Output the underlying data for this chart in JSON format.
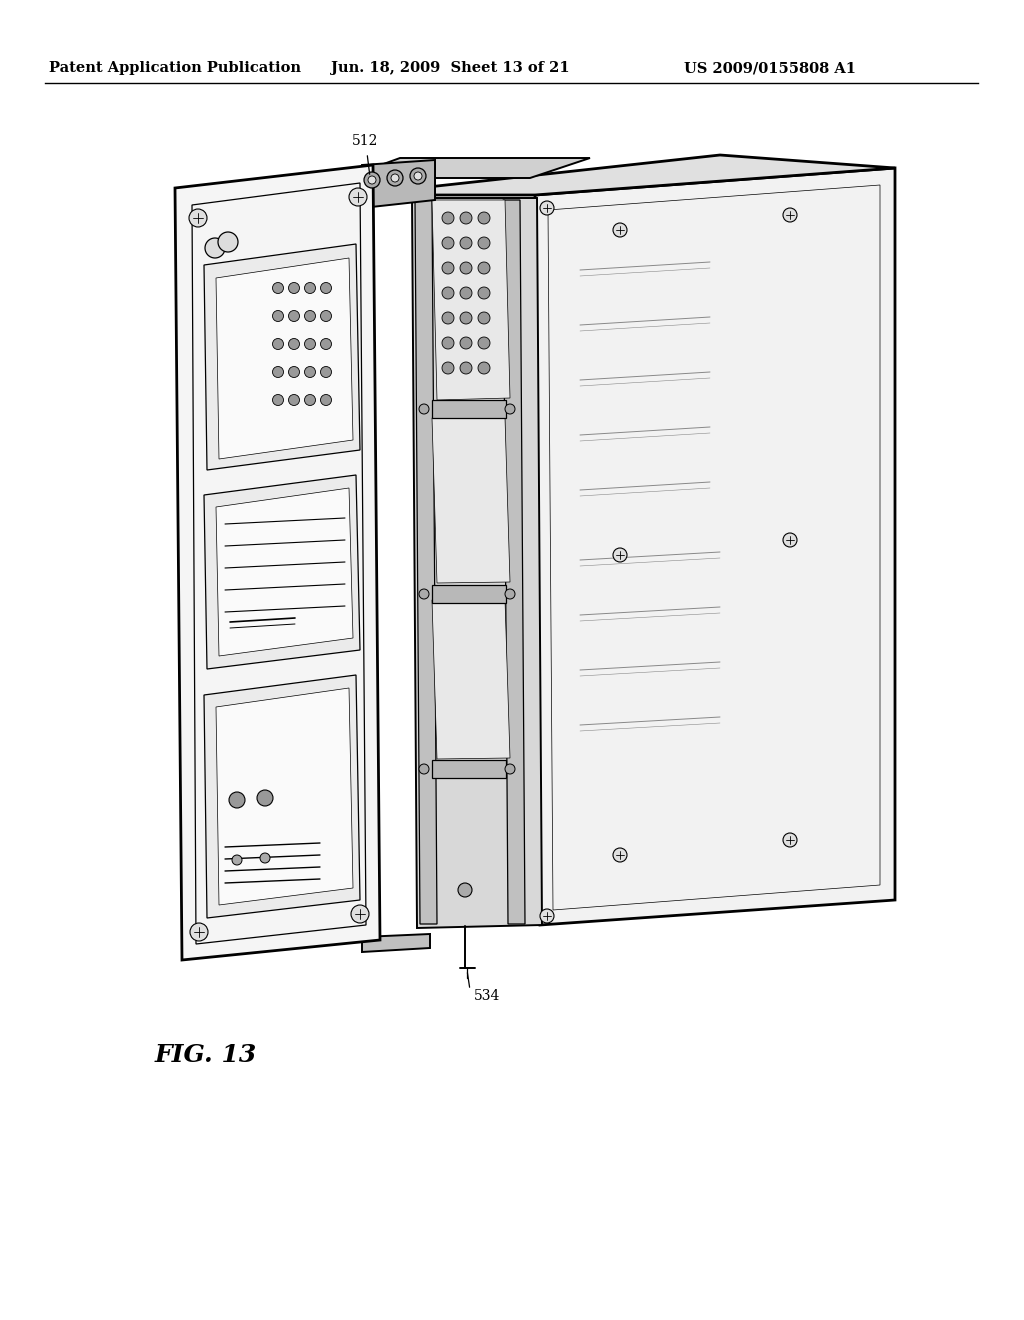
{
  "title_left": "Patent Application Publication",
  "title_mid": "Jun. 18, 2009  Sheet 13 of 21",
  "title_right": "US 2009/0155808 A1",
  "fig_label": "FIG. 13",
  "label_512": "512",
  "label_534": "534",
  "bg_color": "#ffffff",
  "line_color": "#000000",
  "gray_light": "#e8e8e8",
  "gray_mid": "#cccccc",
  "gray_dark": "#aaaaaa",
  "header_fontsize": 10.5,
  "fig_label_fontsize": 18,
  "lw_thick": 2.0,
  "lw_main": 1.4,
  "lw_thin": 0.9,
  "lw_vthin": 0.5
}
